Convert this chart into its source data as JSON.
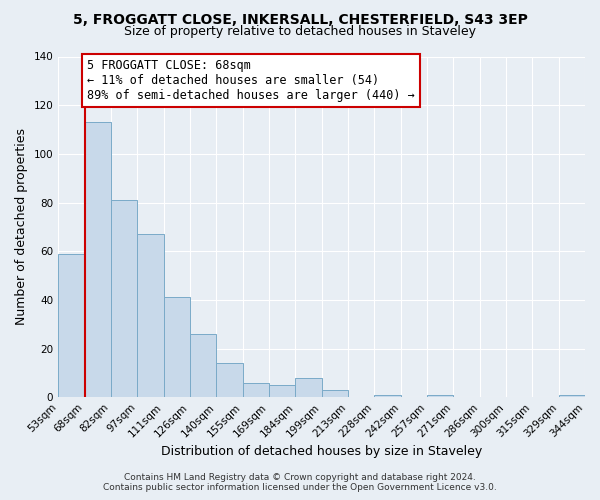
{
  "title_line1": "5, FROGGATT CLOSE, INKERSALL, CHESTERFIELD, S43 3EP",
  "title_line2": "Size of property relative to detached houses in Staveley",
  "xlabel": "Distribution of detached houses by size in Staveley",
  "ylabel": "Number of detached properties",
  "bar_labels": [
    "53sqm",
    "68sqm",
    "82sqm",
    "97sqm",
    "111sqm",
    "126sqm",
    "140sqm",
    "155sqm",
    "169sqm",
    "184sqm",
    "199sqm",
    "213sqm",
    "228sqm",
    "242sqm",
    "257sqm",
    "271sqm",
    "286sqm",
    "300sqm",
    "315sqm",
    "329sqm",
    "344sqm"
  ],
  "bar_values": [
    59,
    113,
    81,
    67,
    41,
    26,
    14,
    6,
    5,
    8,
    3,
    0,
    1,
    0,
    1,
    0,
    0,
    0,
    0,
    1
  ],
  "bar_color": "#c8d9ea",
  "bar_edge_color": "#7aaac8",
  "ylim": [
    0,
    140
  ],
  "yticks": [
    0,
    20,
    40,
    60,
    80,
    100,
    120,
    140
  ],
  "marker_label": "5 FROGGATT CLOSE: 68sqm",
  "annotation_line1": "← 11% of detached houses are smaller (54)",
  "annotation_line2": "89% of semi-detached houses are larger (440) →",
  "vline_color": "#cc0000",
  "annotation_box_edge": "#cc0000",
  "footer_line1": "Contains HM Land Registry data © Crown copyright and database right 2024.",
  "footer_line2": "Contains public sector information licensed under the Open Government Licence v3.0.",
  "bg_color": "#e8eef4",
  "plot_bg_color": "#e8eef4",
  "grid_color": "#ffffff",
  "title_fontsize": 10,
  "subtitle_fontsize": 9,
  "axis_label_fontsize": 9,
  "tick_fontsize": 7.5,
  "annotation_fontsize": 8.5,
  "footer_fontsize": 6.5
}
